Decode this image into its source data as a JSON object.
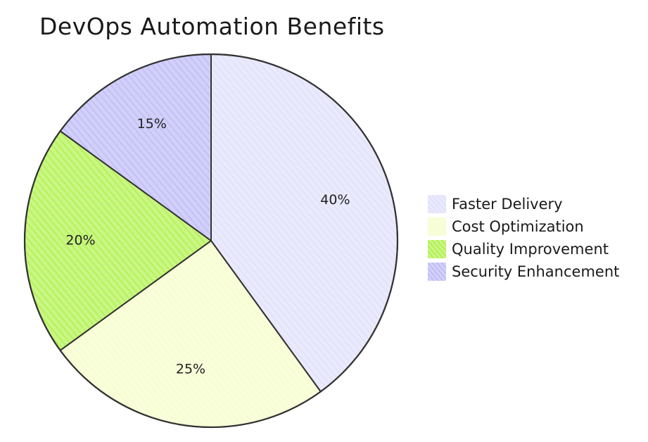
{
  "chart_data": {
    "type": "pie",
    "title": "DevOps Automation Benefits",
    "categories": [
      "Faster Delivery",
      "Cost Optimization",
      "Quality Improvement",
      "Security Enhancement"
    ],
    "values": [
      40,
      25,
      20,
      15
    ],
    "value_labels": [
      "40%",
      "25%",
      "20%",
      "15%"
    ],
    "colors": [
      "#e2e2fb",
      "#f6fdcf",
      "#b6f25a",
      "#c3c0f7"
    ],
    "stroke_color": "#333333",
    "start_angle_deg": 0,
    "direction": "clockwise",
    "legend_position": "right"
  }
}
